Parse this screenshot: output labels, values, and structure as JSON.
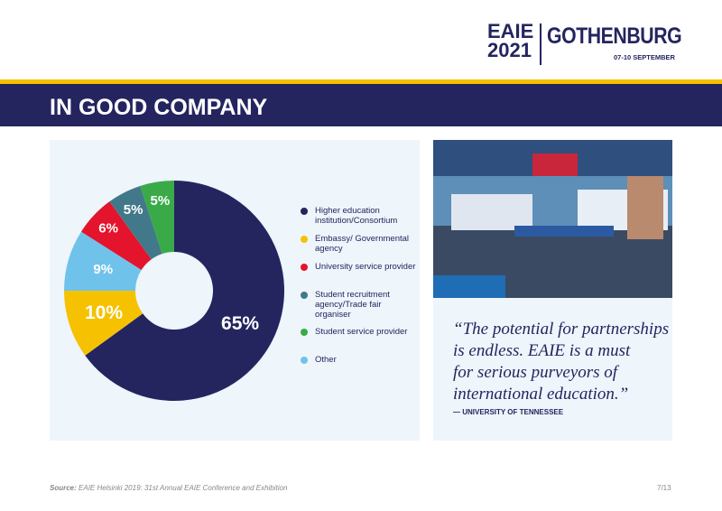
{
  "header": {
    "logo_line1": "EAIE",
    "logo_line2": "2021",
    "logo_city": "GOTHENBURG",
    "logo_dates": "07-10 SEPTEMBER"
  },
  "title": "IN GOOD COMPANY",
  "chart_data": {
    "type": "donut",
    "categories": [
      "Higher education institution/Consortium",
      "Embassy/ Governmental agency",
      "Other",
      "University service provider",
      "Student recruitment agency/Trade fair organiser",
      "Student service provider"
    ],
    "values": [
      65,
      10,
      9,
      6,
      5,
      5
    ],
    "value_labels": [
      "65%",
      "10%",
      "9%",
      "6%",
      "5%",
      "5%"
    ],
    "colors": [
      "#24255f",
      "#f6c100",
      "#6fc3ea",
      "#e3142c",
      "#42798a",
      "#3aaa49"
    ]
  },
  "quote": {
    "lines": [
      "“The potential for partnerships",
      "is endless. EAIE is a must",
      "for serious purveyors of",
      "international education.”"
    ],
    "attribution": "— UNIVERSITY OF TENNESSEE"
  },
  "footer": {
    "source_label": "Source:",
    "source_text": "EAIE Helsinki 2019: 31st Annual EAIE Conference and Exhibition",
    "page": "7/13"
  }
}
